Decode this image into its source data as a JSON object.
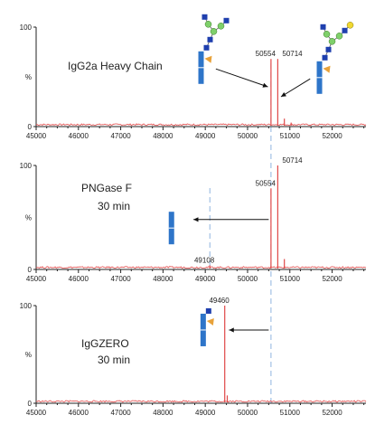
{
  "chart_data": [
    {
      "type": "line",
      "title": "IgG2a Heavy Chain",
      "subtitle": "",
      "xlabel": "",
      "ylabel": "%",
      "xlim": [
        45000,
        52800
      ],
      "ylim": [
        0,
        100
      ],
      "x_ticks": [
        45000,
        46000,
        47000,
        48000,
        49000,
        50000,
        51000,
        52000
      ],
      "y_ticks": [
        {
          "value": 100,
          "label": "100"
        },
        {
          "value": 50,
          "label": "%"
        },
        {
          "value": 0,
          "label": "0"
        }
      ],
      "color": "#e04848",
      "peaks": [
        {
          "x": 50554,
          "y": 68,
          "label": "50554"
        },
        {
          "x": 50714,
          "y": 68,
          "label": "50714"
        },
        {
          "x": 50870,
          "y": 8,
          "label": ""
        },
        {
          "x": 51030,
          "y": 4,
          "label": ""
        }
      ],
      "annotation_arrows": [
        {
          "from": [
            49250,
            58
          ],
          "to": [
            50480,
            40
          ]
        },
        {
          "from": [
            51480,
            48
          ],
          "to": [
            50790,
            30
          ]
        }
      ],
      "glycan_icons": [
        {
          "name": "g0-glycan-icon",
          "x": 48900,
          "y": 72
        },
        {
          "name": "g1-glycan-icon",
          "x": 51700,
          "y": 62
        }
      ]
    },
    {
      "type": "line",
      "title": "PNGase F",
      "subtitle": "30 min",
      "xlabel": "",
      "ylabel": "%",
      "xlim": [
        45000,
        52800
      ],
      "ylim": [
        0,
        100
      ],
      "x_ticks": [
        45000,
        46000,
        47000,
        48000,
        49000,
        50000,
        51000,
        52000
      ],
      "y_ticks": [
        {
          "value": 100,
          "label": "100"
        },
        {
          "value": 50,
          "label": "%"
        },
        {
          "value": 0,
          "label": "0"
        }
      ],
      "color": "#e04848",
      "peaks": [
        {
          "x": 49108,
          "y": 4,
          "label": "49108"
        },
        {
          "x": 50554,
          "y": 78,
          "label": "50554"
        },
        {
          "x": 50714,
          "y": 100,
          "label": "50714"
        },
        {
          "x": 50870,
          "y": 10,
          "label": ""
        }
      ],
      "annotation_arrows": [
        {
          "from": [
            50500,
            48
          ],
          "to": [
            48720,
            48
          ]
        }
      ],
      "glycan_icons": [
        {
          "name": "deglycosylated-icon",
          "x": 48200,
          "y": 52
        }
      ]
    },
    {
      "type": "line",
      "title": "IgGZERO",
      "subtitle": "30 min",
      "xlabel": "",
      "ylabel": "%",
      "xlim": [
        45000,
        52800
      ],
      "ylim": [
        0,
        100
      ],
      "x_ticks": [
        45000,
        46000,
        47000,
        48000,
        49000,
        50000,
        51000,
        52000
      ],
      "y_ticks": [
        {
          "value": 100,
          "label": "100"
        },
        {
          "value": 50,
          "label": "%"
        },
        {
          "value": 0,
          "label": "0"
        }
      ],
      "color": "#e04848",
      "peaks": [
        {
          "x": 49460,
          "y": 100,
          "label": "49460"
        },
        {
          "x": 49520,
          "y": 8,
          "label": ""
        }
      ],
      "annotation_arrows": [
        {
          "from": [
            50500,
            75
          ],
          "to": [
            49560,
            75
          ]
        }
      ],
      "glycan_icons": [
        {
          "name": "core-fucose-glycan-icon",
          "x": 48950,
          "y": 88
        }
      ]
    }
  ],
  "reference_lines": [
    50554,
    49108
  ],
  "colors": {
    "trace": "#e04848",
    "axis": "#222222",
    "reference": "#8fb4df",
    "arrow": "#111111",
    "protein": "#2e75c9",
    "glcnac": "#1f3fae",
    "mannose": "#7fd06a",
    "fucose": "#e8a23a",
    "galactose": "#f0d830"
  }
}
